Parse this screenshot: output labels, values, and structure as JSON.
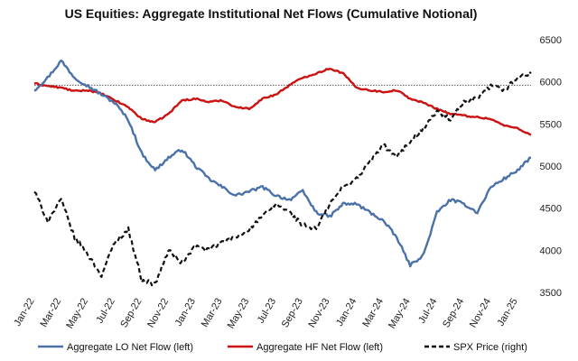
{
  "chart_data": {
    "type": "line",
    "title": "US Equities: Aggregate Institutional Net Flows (Cumulative Notional)",
    "xlabel": "",
    "ylabel": "",
    "x_tick_labels": [
      "Jan-22",
      "Mar-22",
      "May-22",
      "Jul-22",
      "Sep-22",
      "Nov-22",
      "Jan-23",
      "Mar-23",
      "May-23",
      "Jul-23",
      "Sep-23",
      "Nov-23",
      "Jan-24",
      "Mar-24",
      "May-24",
      "Jul-24",
      "Sep-24",
      "Nov-24",
      "Jan-25"
    ],
    "y_right_ticks": [
      3500,
      4000,
      4500,
      5000,
      5500,
      6000,
      6500
    ],
    "y_right_range": [
      3500,
      6500
    ],
    "reference_line": {
      "value": 5960,
      "axis": "right",
      "style": "dotted",
      "color": "#555555"
    },
    "legend_position": "bottom",
    "grid": false,
    "series": [
      {
        "name": "Aggregate LO Net Flow (left)",
        "axis": "left",
        "color": "#4a72a8",
        "style": "solid",
        "x": [
          "Jan-22",
          "Feb-22",
          "Mar-22",
          "Apr-22",
          "May-22",
          "Jun-22",
          "Jul-22",
          "Aug-22",
          "Sep-22",
          "Oct-22",
          "Nov-22",
          "Dec-22",
          "Jan-23",
          "Feb-23",
          "Mar-23",
          "Apr-23",
          "May-23",
          "Jun-23",
          "Jul-23",
          "Aug-23",
          "Sep-23",
          "Oct-23",
          "Nov-23",
          "Dec-23",
          "Jan-24",
          "Feb-24",
          "Mar-24",
          "Apr-24",
          "May-24",
          "Jun-24",
          "Jul-24",
          "Aug-24",
          "Sep-24",
          "Oct-24",
          "Nov-24",
          "Dec-24",
          "Jan-25",
          "Feb-25"
        ],
        "values": [
          5900,
          6050,
          6250,
          6050,
          5950,
          5850,
          5750,
          5550,
          5150,
          4950,
          5100,
          5200,
          5000,
          4850,
          4750,
          4650,
          4700,
          4750,
          4650,
          4600,
          4700,
          4450,
          4400,
          4550,
          4550,
          4450,
          4350,
          4150,
          3820,
          3950,
          4450,
          4600,
          4550,
          4450,
          4750,
          4850,
          4950,
          5100
        ]
      },
      {
        "name": "Aggregate HF Net Flow (left)",
        "axis": "left",
        "color": "#cc1111",
        "style": "solid",
        "x": [
          "Jan-22",
          "Feb-22",
          "Mar-22",
          "Apr-22",
          "May-22",
          "Jun-22",
          "Jul-22",
          "Aug-22",
          "Sep-22",
          "Oct-22",
          "Nov-22",
          "Dec-22",
          "Jan-23",
          "Feb-23",
          "Mar-23",
          "Apr-23",
          "May-23",
          "Jun-23",
          "Jul-23",
          "Aug-23",
          "Sep-23",
          "Oct-23",
          "Nov-23",
          "Dec-23",
          "Jan-24",
          "Feb-24",
          "Mar-24",
          "Apr-24",
          "May-24",
          "Jun-24",
          "Jul-24",
          "Aug-24",
          "Sep-24",
          "Oct-24",
          "Nov-24",
          "Dec-24",
          "Jan-25",
          "Feb-25"
        ],
        "values": [
          5980,
          5950,
          5930,
          5890,
          5900,
          5860,
          5780,
          5700,
          5560,
          5520,
          5620,
          5780,
          5800,
          5760,
          5780,
          5700,
          5680,
          5800,
          5850,
          5960,
          6050,
          6100,
          6160,
          6100,
          5930,
          5900,
          5880,
          5900,
          5800,
          5750,
          5680,
          5620,
          5600,
          5580,
          5560,
          5480,
          5450,
          5370
        ]
      },
      {
        "name": "SPX Price (right)",
        "axis": "right",
        "color": "#111111",
        "style": "dashed",
        "x": [
          "Jan-22",
          "Feb-22",
          "Mar-22",
          "Apr-22",
          "May-22",
          "Jun-22",
          "Jul-22",
          "Aug-22",
          "Sep-22",
          "Oct-22",
          "Nov-22",
          "Dec-22",
          "Jan-23",
          "Feb-23",
          "Mar-23",
          "Apr-23",
          "May-23",
          "Jun-23",
          "Jul-23",
          "Aug-23",
          "Sep-23",
          "Oct-23",
          "Nov-23",
          "Dec-23",
          "Jan-24",
          "Feb-24",
          "Mar-24",
          "Apr-24",
          "May-24",
          "Jun-24",
          "Jul-24",
          "Aug-24",
          "Sep-24",
          "Oct-24",
          "Nov-24",
          "Dec-24",
          "Jan-25",
          "Feb-25"
        ],
        "values": [
          4700,
          4350,
          4600,
          4150,
          3950,
          3700,
          4100,
          4250,
          3650,
          3600,
          4000,
          3850,
          4050,
          4000,
          4100,
          4150,
          4250,
          4400,
          4550,
          4450,
          4300,
          4250,
          4550,
          4750,
          4850,
          5050,
          5250,
          5100,
          5300,
          5450,
          5650,
          5550,
          5750,
          5800,
          5950,
          5900,
          6050,
          6100
        ]
      }
    ],
    "legend": [
      {
        "label": "Aggregate LO Net Flow (left)",
        "color": "#4a72a8",
        "style": "solid"
      },
      {
        "label": "Aggregate HF Net Flow (left)",
        "color": "#cc1111",
        "style": "solid"
      },
      {
        "label": "SPX Price (right)",
        "color": "#111111",
        "style": "dashed"
      }
    ]
  }
}
